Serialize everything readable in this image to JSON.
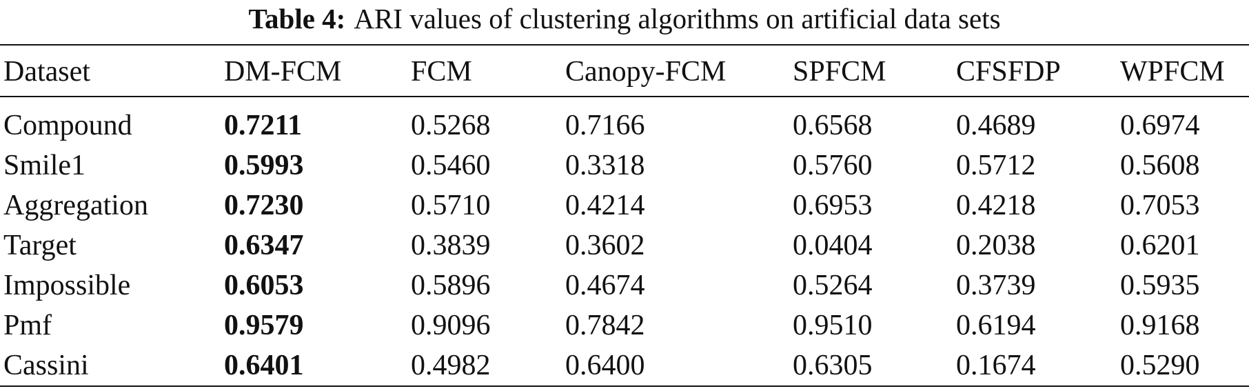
{
  "caption": {
    "label": "Table 4:",
    "text": "ARI values of clustering algorithms on artificial data sets"
  },
  "table": {
    "headers": [
      "Dataset",
      "DM-FCM",
      "FCM",
      "Canopy-FCM",
      "SPFCM",
      "CFSFDP",
      "WPFCM"
    ],
    "rows": [
      [
        "Compound",
        "0.7211",
        "0.5268",
        "0.7166",
        "0.6568",
        "0.4689",
        "0.6974"
      ],
      [
        "Smile1",
        "0.5993",
        "0.5460",
        "0.3318",
        "0.5760",
        "0.5712",
        "0.5608"
      ],
      [
        "Aggregation",
        "0.7230",
        "0.5710",
        "0.4214",
        "0.6953",
        "0.4218",
        "0.7053"
      ],
      [
        "Target",
        "0.6347",
        "0.3839",
        "0.3602",
        "0.0404",
        "0.2038",
        "0.6201"
      ],
      [
        "Impossible",
        "0.6053",
        "0.5896",
        "0.4674",
        "0.5264",
        "0.3739",
        "0.5935"
      ],
      [
        "Pmf",
        "0.9579",
        "0.9096",
        "0.7842",
        "0.9510",
        "0.6194",
        "0.9168"
      ],
      [
        "Cassini",
        "0.6401",
        "0.4982",
        "0.6400",
        "0.6305",
        "0.1674",
        "0.5290"
      ]
    ],
    "bold_column": "DM-FCM"
  }
}
